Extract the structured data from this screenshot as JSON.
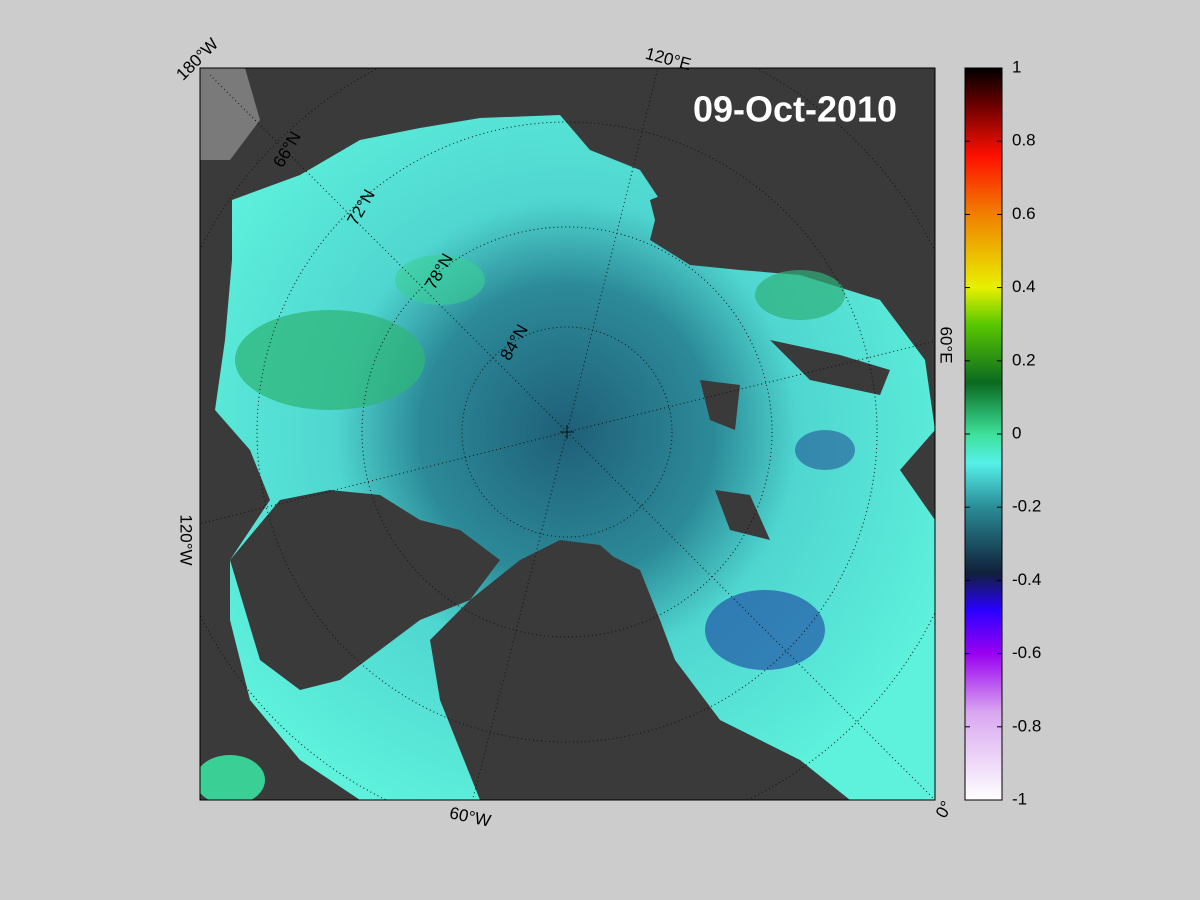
{
  "title": "09-Oct-2010",
  "longitude_labels": [
    "180°W",
    "120°E",
    "60°E",
    "0°",
    "60°W",
    "120°W"
  ],
  "latitude_labels": [
    "66°N",
    "72°N",
    "78°N",
    "84°N"
  ],
  "colorbar": {
    "lim": [
      -1,
      1
    ],
    "ticks": [
      -1,
      -0.8,
      -0.6,
      -0.4,
      -0.2,
      0,
      0.2,
      0.4,
      0.6,
      0.8,
      1
    ]
  }
}
